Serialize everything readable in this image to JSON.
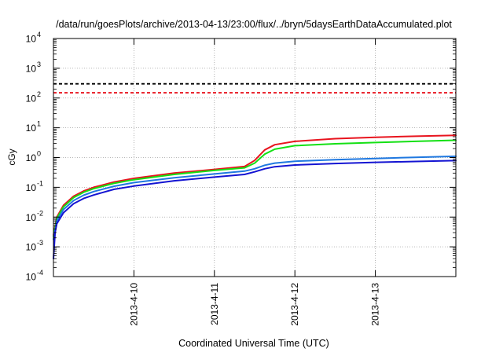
{
  "chart_data": {
    "type": "line",
    "title": "/data/run/goesPlots/archive/2013-04-13/23:00/flux/../bryn/5daysEarthDataAccumulated.plot",
    "xlabel": "Coordinated Universal Time (UTC)",
    "ylabel": "cGy",
    "x_range": [
      "2013-04-09T00:00",
      "2013-04-14T00:00"
    ],
    "x_ticks": [
      "2013-4-10",
      "2013-4-11",
      "2013-4-12",
      "2013-4-13"
    ],
    "y_scale": "log",
    "ylim": [
      0.0001,
      10000
    ],
    "y_ticks": [
      {
        "base": "10",
        "exp": "-4"
      },
      {
        "base": "10",
        "exp": "-3"
      },
      {
        "base": "10",
        "exp": "-2"
      },
      {
        "base": "10",
        "exp": "-1"
      },
      {
        "base": "10",
        "exp": "0"
      },
      {
        "base": "10",
        "exp": "1"
      },
      {
        "base": "10",
        "exp": "2"
      },
      {
        "base": "10",
        "exp": "3"
      },
      {
        "base": "10",
        "exp": "4"
      }
    ],
    "grid": true,
    "thresholds": [
      {
        "value": 300,
        "color": "#000000",
        "style": "dashed"
      },
      {
        "value": 150,
        "color": "#e8141e",
        "style": "dashed"
      }
    ],
    "series": [
      {
        "color": "#e8141e",
        "points": [
          [
            "2013-04-09T00:00",
            0.0025
          ],
          [
            "2013-04-09T01:00",
            0.01
          ],
          [
            "2013-04-09T03:00",
            0.025
          ],
          [
            "2013-04-09T06:00",
            0.05
          ],
          [
            "2013-04-09T09:00",
            0.075
          ],
          [
            "2013-04-09T12:00",
            0.1
          ],
          [
            "2013-04-09T18:00",
            0.15
          ],
          [
            "2013-04-10T00:00",
            0.2
          ],
          [
            "2013-04-10T12:00",
            0.3
          ],
          [
            "2013-04-11T00:00",
            0.4
          ],
          [
            "2013-04-11T09:00",
            0.5
          ],
          [
            "2013-04-11T12:00",
            0.8
          ],
          [
            "2013-04-11T15:00",
            1.8
          ],
          [
            "2013-04-11T18:00",
            2.7
          ],
          [
            "2013-04-12T00:00",
            3.5
          ],
          [
            "2013-04-12T12:00",
            4.3
          ],
          [
            "2013-04-13T00:00",
            4.8
          ],
          [
            "2013-04-13T12:00",
            5.2
          ],
          [
            "2013-04-14T00:00",
            5.6
          ]
        ]
      },
      {
        "color": "#14e014",
        "points": [
          [
            "2013-04-09T00:00",
            0.0022
          ],
          [
            "2013-04-09T01:00",
            0.009
          ],
          [
            "2013-04-09T03:00",
            0.022
          ],
          [
            "2013-04-09T06:00",
            0.045
          ],
          [
            "2013-04-09T09:00",
            0.068
          ],
          [
            "2013-04-09T12:00",
            0.09
          ],
          [
            "2013-04-09T18:00",
            0.135
          ],
          [
            "2013-04-10T00:00",
            0.18
          ],
          [
            "2013-04-10T12:00",
            0.27
          ],
          [
            "2013-04-11T00:00",
            0.37
          ],
          [
            "2013-04-11T09:00",
            0.45
          ],
          [
            "2013-04-11T12:00",
            0.65
          ],
          [
            "2013-04-11T15:00",
            1.3
          ],
          [
            "2013-04-11T18:00",
            1.9
          ],
          [
            "2013-04-12T00:00",
            2.5
          ],
          [
            "2013-04-12T12:00",
            2.9
          ],
          [
            "2013-04-13T00:00",
            3.2
          ],
          [
            "2013-04-13T12:00",
            3.5
          ],
          [
            "2013-04-14T00:00",
            3.8
          ]
        ]
      },
      {
        "color": "#1f78e0",
        "points": [
          [
            "2013-04-09T00:00",
            0.0018
          ],
          [
            "2013-04-09T01:00",
            0.0075
          ],
          [
            "2013-04-09T03:00",
            0.018
          ],
          [
            "2013-04-09T06:00",
            0.036
          ],
          [
            "2013-04-09T09:00",
            0.054
          ],
          [
            "2013-04-09T12:00",
            0.072
          ],
          [
            "2013-04-09T18:00",
            0.108
          ],
          [
            "2013-04-10T00:00",
            0.144
          ],
          [
            "2013-04-10T12:00",
            0.21
          ],
          [
            "2013-04-11T00:00",
            0.28
          ],
          [
            "2013-04-11T09:00",
            0.35
          ],
          [
            "2013-04-11T12:00",
            0.42
          ],
          [
            "2013-04-11T15:00",
            0.55
          ],
          [
            "2013-04-11T18:00",
            0.65
          ],
          [
            "2013-04-12T00:00",
            0.75
          ],
          [
            "2013-04-12T12:00",
            0.85
          ],
          [
            "2013-04-13T00:00",
            0.93
          ],
          [
            "2013-04-13T12:00",
            1.02
          ],
          [
            "2013-04-14T00:00",
            1.1
          ]
        ]
      },
      {
        "color": "#1414d2",
        "points": [
          [
            "2013-04-09T00:00",
            0.0004
          ],
          [
            "2013-04-09T00:30",
            0.003
          ],
          [
            "2013-04-09T01:00",
            0.006
          ],
          [
            "2013-04-09T03:00",
            0.014
          ],
          [
            "2013-04-09T06:00",
            0.028
          ],
          [
            "2013-04-09T09:00",
            0.042
          ],
          [
            "2013-04-09T12:00",
            0.055
          ],
          [
            "2013-04-09T18:00",
            0.085
          ],
          [
            "2013-04-10T00:00",
            0.11
          ],
          [
            "2013-04-10T12:00",
            0.165
          ],
          [
            "2013-04-11T00:00",
            0.22
          ],
          [
            "2013-04-11T09:00",
            0.27
          ],
          [
            "2013-04-11T12:00",
            0.33
          ],
          [
            "2013-04-11T15:00",
            0.42
          ],
          [
            "2013-04-11T18:00",
            0.49
          ],
          [
            "2013-04-12T00:00",
            0.56
          ],
          [
            "2013-04-12T12:00",
            0.63
          ],
          [
            "2013-04-13T00:00",
            0.69
          ],
          [
            "2013-04-13T12:00",
            0.74
          ],
          [
            "2013-04-14T00:00",
            0.79
          ]
        ]
      }
    ]
  }
}
